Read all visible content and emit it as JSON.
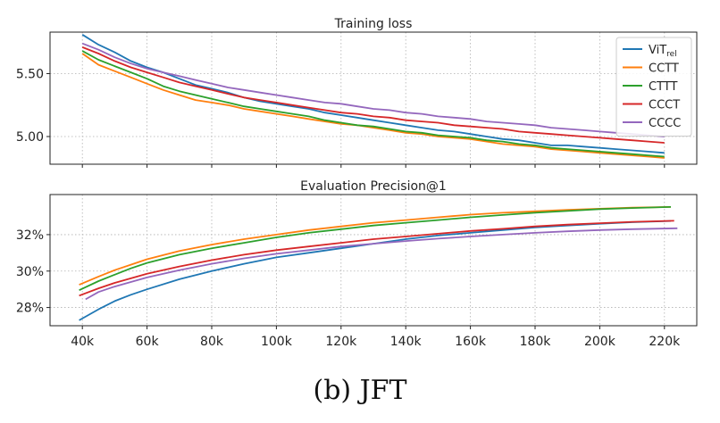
{
  "caption": "(b) JFT",
  "colors": {
    "vit": "#1f77b4",
    "cctt": "#ff7f0e",
    "cttt": "#2ca02c",
    "ccct": "#d62728",
    "cccc": "#9467bd"
  },
  "chart_data": [
    {
      "type": "line",
      "title": "Training loss",
      "xlabel": "",
      "ylabel": "",
      "xlim": [
        30,
        230
      ],
      "ylim": [
        4.78,
        5.83
      ],
      "grid": true,
      "legend": "top-right",
      "x_ticks": [
        40,
        60,
        80,
        100,
        120,
        140,
        160,
        180,
        200,
        220
      ],
      "y_ticks": [
        5.0,
        5.5
      ],
      "y_tick_labels": [
        "5.00",
        "5.50"
      ],
      "series": [
        {
          "name": "ViT",
          "subscript": "rel",
          "color": "#1f77b4",
          "x": [
            40,
            45,
            50,
            55,
            60,
            65,
            70,
            75,
            80,
            85,
            90,
            95,
            100,
            105,
            110,
            115,
            120,
            125,
            130,
            135,
            140,
            145,
            150,
            155,
            160,
            165,
            170,
            175,
            180,
            185,
            190,
            195,
            200,
            205,
            210,
            215,
            220
          ],
          "y": [
            5.81,
            5.73,
            5.67,
            5.6,
            5.55,
            5.51,
            5.46,
            5.41,
            5.38,
            5.35,
            5.31,
            5.28,
            5.26,
            5.24,
            5.22,
            5.19,
            5.17,
            5.15,
            5.13,
            5.11,
            5.09,
            5.07,
            5.05,
            5.04,
            5.02,
            5.0,
            4.98,
            4.97,
            4.95,
            4.93,
            4.93,
            4.92,
            4.91,
            4.9,
            4.89,
            4.88,
            4.87
          ]
        },
        {
          "name": "CCTT",
          "color": "#ff7f0e",
          "x": [
            40,
            45,
            50,
            55,
            60,
            65,
            70,
            75,
            80,
            85,
            90,
            95,
            100,
            105,
            110,
            115,
            120,
            125,
            130,
            135,
            140,
            145,
            150,
            155,
            160,
            165,
            170,
            175,
            180,
            185,
            190,
            195,
            200,
            205,
            210,
            215,
            220
          ],
          "y": [
            5.66,
            5.57,
            5.52,
            5.47,
            5.42,
            5.37,
            5.33,
            5.29,
            5.27,
            5.25,
            5.22,
            5.2,
            5.18,
            5.16,
            5.14,
            5.12,
            5.1,
            5.09,
            5.07,
            5.05,
            5.03,
            5.02,
            5.0,
            4.99,
            4.98,
            4.96,
            4.94,
            4.93,
            4.92,
            4.9,
            4.89,
            4.88,
            4.87,
            4.86,
            4.85,
            4.84,
            4.83
          ]
        },
        {
          "name": "CTTT",
          "color": "#2ca02c",
          "x": [
            40,
            45,
            50,
            55,
            60,
            65,
            70,
            75,
            80,
            85,
            90,
            95,
            100,
            105,
            110,
            115,
            120,
            125,
            130,
            135,
            140,
            145,
            150,
            155,
            160,
            165,
            170,
            175,
            180,
            185,
            190,
            195,
            200,
            205,
            210,
            215,
            220
          ],
          "y": [
            5.68,
            5.61,
            5.56,
            5.51,
            5.46,
            5.4,
            5.36,
            5.33,
            5.3,
            5.27,
            5.24,
            5.22,
            5.2,
            5.18,
            5.16,
            5.13,
            5.11,
            5.09,
            5.08,
            5.06,
            5.04,
            5.03,
            5.01,
            5.0,
            4.99,
            4.97,
            4.96,
            4.94,
            4.93,
            4.91,
            4.9,
            4.89,
            4.88,
            4.87,
            4.86,
            4.85,
            4.84
          ]
        },
        {
          "name": "CCCT",
          "color": "#d62728",
          "x": [
            40,
            45,
            50,
            55,
            60,
            65,
            70,
            75,
            80,
            85,
            90,
            95,
            100,
            105,
            110,
            115,
            120,
            125,
            130,
            135,
            140,
            145,
            150,
            155,
            160,
            165,
            170,
            175,
            180,
            185,
            190,
            195,
            200,
            205,
            210,
            215,
            220
          ],
          "y": [
            5.71,
            5.66,
            5.6,
            5.55,
            5.51,
            5.47,
            5.43,
            5.4,
            5.37,
            5.34,
            5.31,
            5.29,
            5.27,
            5.25,
            5.23,
            5.21,
            5.19,
            5.18,
            5.16,
            5.15,
            5.13,
            5.12,
            5.11,
            5.09,
            5.08,
            5.07,
            5.06,
            5.04,
            5.03,
            5.02,
            5.01,
            5.0,
            4.99,
            4.98,
            4.97,
            4.96,
            4.95
          ]
        },
        {
          "name": "CCCC",
          "color": "#9467bd",
          "x": [
            40,
            45,
            50,
            55,
            60,
            65,
            70,
            75,
            80,
            85,
            90,
            95,
            100,
            105,
            110,
            115,
            120,
            125,
            130,
            135,
            140,
            145,
            150,
            155,
            160,
            165,
            170,
            175,
            180,
            185,
            190,
            195,
            200,
            205,
            210,
            215,
            220
          ],
          "y": [
            5.74,
            5.69,
            5.63,
            5.58,
            5.54,
            5.51,
            5.48,
            5.45,
            5.42,
            5.39,
            5.37,
            5.35,
            5.33,
            5.31,
            5.29,
            5.27,
            5.26,
            5.24,
            5.22,
            5.21,
            5.19,
            5.18,
            5.16,
            5.15,
            5.14,
            5.12,
            5.11,
            5.1,
            5.09,
            5.07,
            5.06,
            5.05,
            5.04,
            5.03,
            5.02,
            5.01,
            5.0
          ]
        }
      ]
    },
    {
      "type": "line",
      "title": "Evaluation Precision@1",
      "xlabel": "",
      "ylabel": "",
      "xlim": [
        30,
        230
      ],
      "ylim": [
        27.0,
        34.2
      ],
      "grid": true,
      "x_ticks": [
        40,
        60,
        80,
        100,
        120,
        140,
        160,
        180,
        200,
        220
      ],
      "x_tick_labels": [
        "40k",
        "60k",
        "80k",
        "100k",
        "120k",
        "140k",
        "160k",
        "180k",
        "200k",
        "220k"
      ],
      "y_ticks": [
        28,
        30,
        32
      ],
      "y_tick_labels": [
        "28%",
        "30%",
        "32%"
      ],
      "series": [
        {
          "name": "ViT",
          "subscript": "rel",
          "color": "#1f77b4",
          "x": [
            39,
            45,
            50,
            55,
            60,
            70,
            80,
            90,
            100,
            110,
            120,
            130,
            140,
            150,
            160,
            170,
            180,
            190,
            200,
            210,
            222
          ],
          "y": [
            27.3,
            27.9,
            28.35,
            28.7,
            29.0,
            29.55,
            30.0,
            30.4,
            30.75,
            31.0,
            31.25,
            31.5,
            31.75,
            31.95,
            32.1,
            32.25,
            32.4,
            32.5,
            32.6,
            32.68,
            32.75
          ]
        },
        {
          "name": "CCTT",
          "color": "#ff7f0e",
          "x": [
            39,
            45,
            50,
            55,
            60,
            70,
            80,
            90,
            100,
            110,
            120,
            130,
            140,
            150,
            160,
            170,
            180,
            190,
            200,
            210,
            222
          ],
          "y": [
            29.25,
            29.7,
            30.05,
            30.35,
            30.65,
            31.1,
            31.45,
            31.75,
            32.0,
            32.25,
            32.45,
            32.65,
            32.8,
            32.95,
            33.1,
            33.2,
            33.28,
            33.36,
            33.42,
            33.48,
            33.52
          ]
        },
        {
          "name": "CTTT",
          "color": "#2ca02c",
          "x": [
            39,
            45,
            50,
            55,
            60,
            70,
            80,
            90,
            100,
            110,
            120,
            130,
            140,
            150,
            160,
            170,
            180,
            190,
            200,
            210,
            222
          ],
          "y": [
            28.95,
            29.45,
            29.8,
            30.15,
            30.45,
            30.9,
            31.25,
            31.55,
            31.85,
            32.1,
            32.3,
            32.5,
            32.65,
            32.8,
            32.95,
            33.08,
            33.2,
            33.3,
            33.4,
            33.46,
            33.52
          ]
        },
        {
          "name": "CCCT",
          "color": "#d62728",
          "x": [
            39,
            45,
            50,
            55,
            60,
            70,
            80,
            90,
            100,
            110,
            120,
            130,
            140,
            150,
            160,
            170,
            180,
            190,
            200,
            210,
            223
          ],
          "y": [
            28.65,
            29.05,
            29.35,
            29.6,
            29.85,
            30.25,
            30.6,
            30.9,
            31.15,
            31.35,
            31.55,
            31.75,
            31.9,
            32.05,
            32.2,
            32.32,
            32.45,
            32.55,
            32.63,
            32.7,
            32.76
          ]
        },
        {
          "name": "CCCC",
          "color": "#9467bd",
          "x": [
            41,
            45,
            50,
            55,
            60,
            70,
            80,
            90,
            100,
            110,
            120,
            130,
            140,
            150,
            160,
            170,
            180,
            190,
            200,
            210,
            224
          ],
          "y": [
            28.45,
            28.85,
            29.15,
            29.4,
            29.65,
            30.05,
            30.4,
            30.7,
            30.95,
            31.15,
            31.35,
            31.5,
            31.65,
            31.78,
            31.9,
            32.0,
            32.1,
            32.18,
            32.25,
            32.3,
            32.35
          ]
        }
      ]
    }
  ]
}
